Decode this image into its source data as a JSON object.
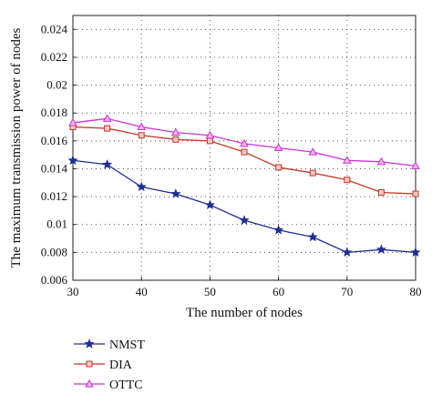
{
  "chart_data": {
    "type": "line",
    "title": "",
    "xlabel": "The number of nodes",
    "ylabel": "The maximum transmission power of nodes",
    "x": [
      30,
      35,
      40,
      45,
      50,
      55,
      60,
      65,
      70,
      75,
      80
    ],
    "xlim": [
      30,
      80
    ],
    "ylim": [
      0.006,
      0.025
    ],
    "xticks": [
      "30",
      "40",
      "50",
      "60",
      "70",
      "80"
    ],
    "yticks": [
      "0.006",
      "0.008",
      "0.01",
      "0.012",
      "0.014",
      "0.016",
      "0.018",
      "0.02",
      "0.022",
      "0.024"
    ],
    "grid": true,
    "legend_position": "below",
    "series": [
      {
        "name": "NMST",
        "color": "#1f2f8f",
        "marker": "star",
        "values": [
          0.0146,
          0.0143,
          0.0127,
          0.0122,
          0.0114,
          0.0103,
          0.0096,
          0.0091,
          0.008,
          0.0082,
          0.008
        ]
      },
      {
        "name": "DIA",
        "color": "#c0392b",
        "marker": "square",
        "values": [
          0.017,
          0.0169,
          0.0164,
          0.0161,
          0.016,
          0.0152,
          0.0141,
          0.0137,
          0.0132,
          0.0123,
          0.0122
        ]
      },
      {
        "name": "OTTC",
        "color": "#cc33cc",
        "marker": "triangle",
        "values": [
          0.0173,
          0.0176,
          0.017,
          0.0166,
          0.0164,
          0.0158,
          0.0155,
          0.0152,
          0.0146,
          0.0145,
          0.0142
        ]
      }
    ]
  }
}
